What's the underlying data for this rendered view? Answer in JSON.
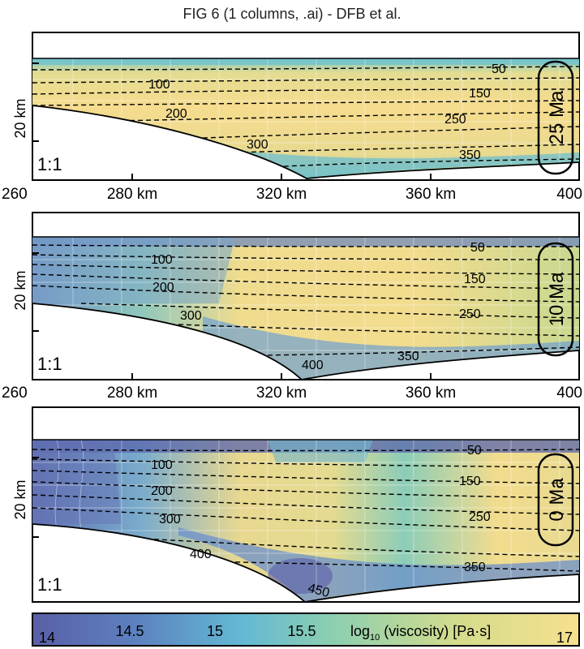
{
  "figure": {
    "title": "FIG 6 (1 columns, .ai) - DFB et al.",
    "scale_ratio": "1:1",
    "y_axis_label": "20 km",
    "x_ticks": [
      {
        "value": 260,
        "label": "260"
      },
      {
        "value": 280,
        "label": "280 km"
      },
      {
        "value": 320,
        "label": "320 km"
      },
      {
        "value": 360,
        "label": "360 km"
      },
      {
        "value": 400,
        "label": "400"
      }
    ],
    "panels": [
      {
        "age": "25 Ma",
        "contours": [
          "50",
          "100",
          "150",
          "200",
          "250",
          "300",
          "350"
        ]
      },
      {
        "age": "10 Ma",
        "contours": [
          "50",
          "100",
          "150",
          "200",
          "250",
          "300",
          "350",
          "400"
        ]
      },
      {
        "age": "0 Ma",
        "contours": [
          "50",
          "100",
          "150",
          "200",
          "250",
          "300",
          "350",
          "400",
          "450"
        ]
      }
    ]
  },
  "colorbar": {
    "label_prefix": "log",
    "label_sub": "10",
    "label_suffix": " (viscosity) [Pa·s]",
    "ticks": [
      "14",
      "14.5",
      "15",
      "15.5",
      "17"
    ],
    "colors": [
      "#5a5fa6",
      "#5c7fbe",
      "#63b8d4",
      "#8ccfb0",
      "#d4dc8c",
      "#f6e08e"
    ]
  }
}
